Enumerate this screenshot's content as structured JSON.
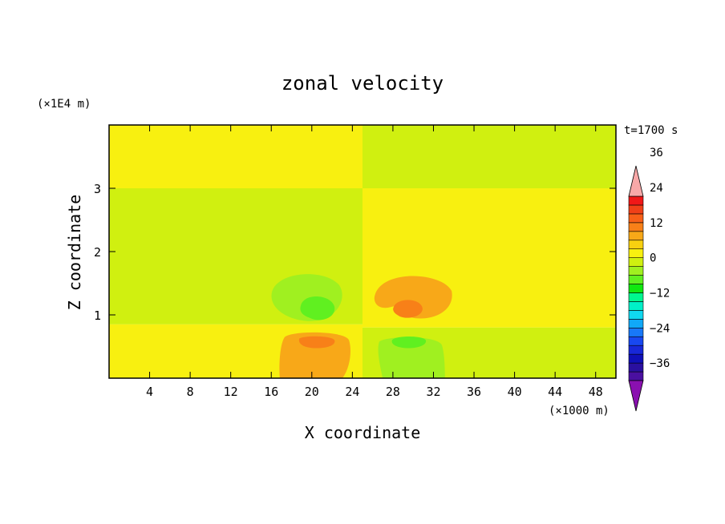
{
  "chart_data": {
    "type": "heatmap",
    "title": "zonal velocity",
    "xlabel": "X coordinate",
    "ylabel": "Z coordinate",
    "x_unit": "(×1000 m)",
    "y_unit": "(×1E4 m)",
    "time_label": "t=1700 s",
    "xlim": [
      0,
      50
    ],
    "ylim": [
      0,
      4
    ],
    "x_ticks": [
      4,
      8,
      12,
      16,
      20,
      24,
      28,
      32,
      36,
      40,
      44,
      48
    ],
    "y_ticks": [
      1,
      2,
      3
    ],
    "colorbar": {
      "min": -42,
      "max": 42,
      "step": 3,
      "tick_values": [
        36,
        24,
        12,
        0,
        -12,
        -24,
        -36
      ],
      "tick_labels": [
        "36",
        "24",
        "12",
        "0",
        "−12",
        "−24",
        "−36"
      ],
      "colors": [
        "#8a10b0",
        "#4a10a0",
        "#2a10a0",
        "#1010b8",
        "#1828d8",
        "#1848f0",
        "#1878f8",
        "#10a8f8",
        "#10d8f0",
        "#00f0c8",
        "#00f890",
        "#10e810",
        "#60f020",
        "#a0f020",
        "#d0f010",
        "#f8f010",
        "#f8d010",
        "#f8a818",
        "#f88018",
        "#f86018",
        "#f04018",
        "#f01818",
        "#f8a8a8"
      ],
      "under_color": "#8a10b0",
      "over_color": "#f8a8a8"
    },
    "regions": [
      {
        "name": "upper-left layer",
        "x": [
          0,
          25
        ],
        "z": [
          3.0,
          4.0
        ],
        "value": 0
      },
      {
        "name": "upper-right layer",
        "x": [
          25,
          50
        ],
        "z": [
          3.0,
          4.0
        ],
        "value": -3
      },
      {
        "name": "middle-left layer",
        "x": [
          0,
          25
        ],
        "z": [
          0.85,
          3.0
        ],
        "value": -3
      },
      {
        "name": "middle-right layer",
        "x": [
          25,
          50
        ],
        "z": [
          0.8,
          3.0
        ],
        "value": 0
      },
      {
        "name": "lower-left layer",
        "x": [
          0,
          25
        ],
        "z": [
          0,
          0.85
        ],
        "value": 0
      },
      {
        "name": "lower-right layer",
        "x": [
          25,
          50
        ],
        "z": [
          0,
          0.8
        ],
        "value": -3
      }
    ],
    "anomalies": [
      {
        "name": "negative cell mid-left",
        "x": 19.5,
        "z": 1.3,
        "value": -6
      },
      {
        "name": "negative core mid-left",
        "x": 20.5,
        "z": 1.1,
        "value": -9
      },
      {
        "name": "positive cell mid-right",
        "x": 30.0,
        "z": 1.3,
        "value": 6
      },
      {
        "name": "positive core mid-right",
        "x": 29.5,
        "z": 1.1,
        "value": 9
      },
      {
        "name": "positive cell low-left",
        "x": 20.5,
        "z": 0.45,
        "value": 6
      },
      {
        "name": "positive core low-left",
        "x": 20.5,
        "z": 0.55,
        "value": 9
      },
      {
        "name": "negative cell low-right",
        "x": 29.5,
        "z": 0.4,
        "value": -6
      },
      {
        "name": "negative core low-right",
        "x": 29.5,
        "z": 0.55,
        "value": -9
      }
    ],
    "grid": false,
    "legend": "right"
  }
}
